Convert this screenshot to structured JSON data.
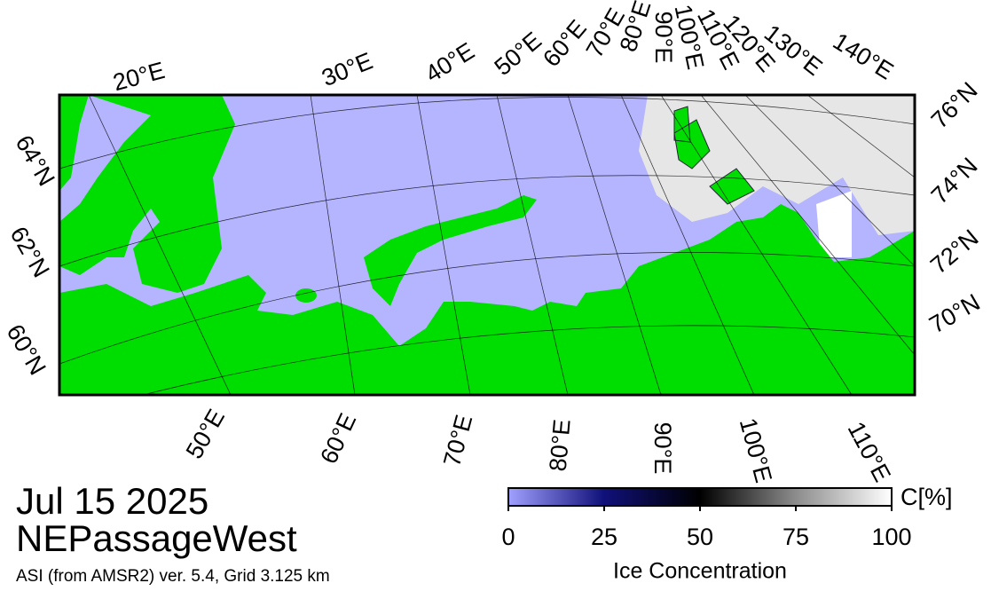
{
  "map": {
    "top_lon_labels": [
      "20°E",
      "30°E",
      "40°E",
      "50°E",
      "60°E",
      "70°E",
      "80°E",
      "90°E",
      "100°E",
      "110°E",
      "120°E",
      "130°E",
      "140°E"
    ],
    "bottom_lon_labels": [
      "50°E",
      "60°E",
      "70°E",
      "80°E",
      "90°E",
      "100°E",
      "110°E"
    ],
    "left_lat_labels": [
      "64°N",
      "62°N",
      "60°N"
    ],
    "right_lat_labels": [
      "76°N",
      "74°N",
      "72°N",
      "70°N"
    ]
  },
  "footer": {
    "date": "Jul 15 2025",
    "region": "NEPassageWest",
    "source": "ASI (from AMSR2) ver. 5.4,  Grid 3.125 km"
  },
  "colorbar": {
    "lim": [
      0,
      100
    ],
    "ticks": [
      0,
      25,
      50,
      75,
      100
    ],
    "unit": "C[%]",
    "title": "Ice Concentration"
  }
}
